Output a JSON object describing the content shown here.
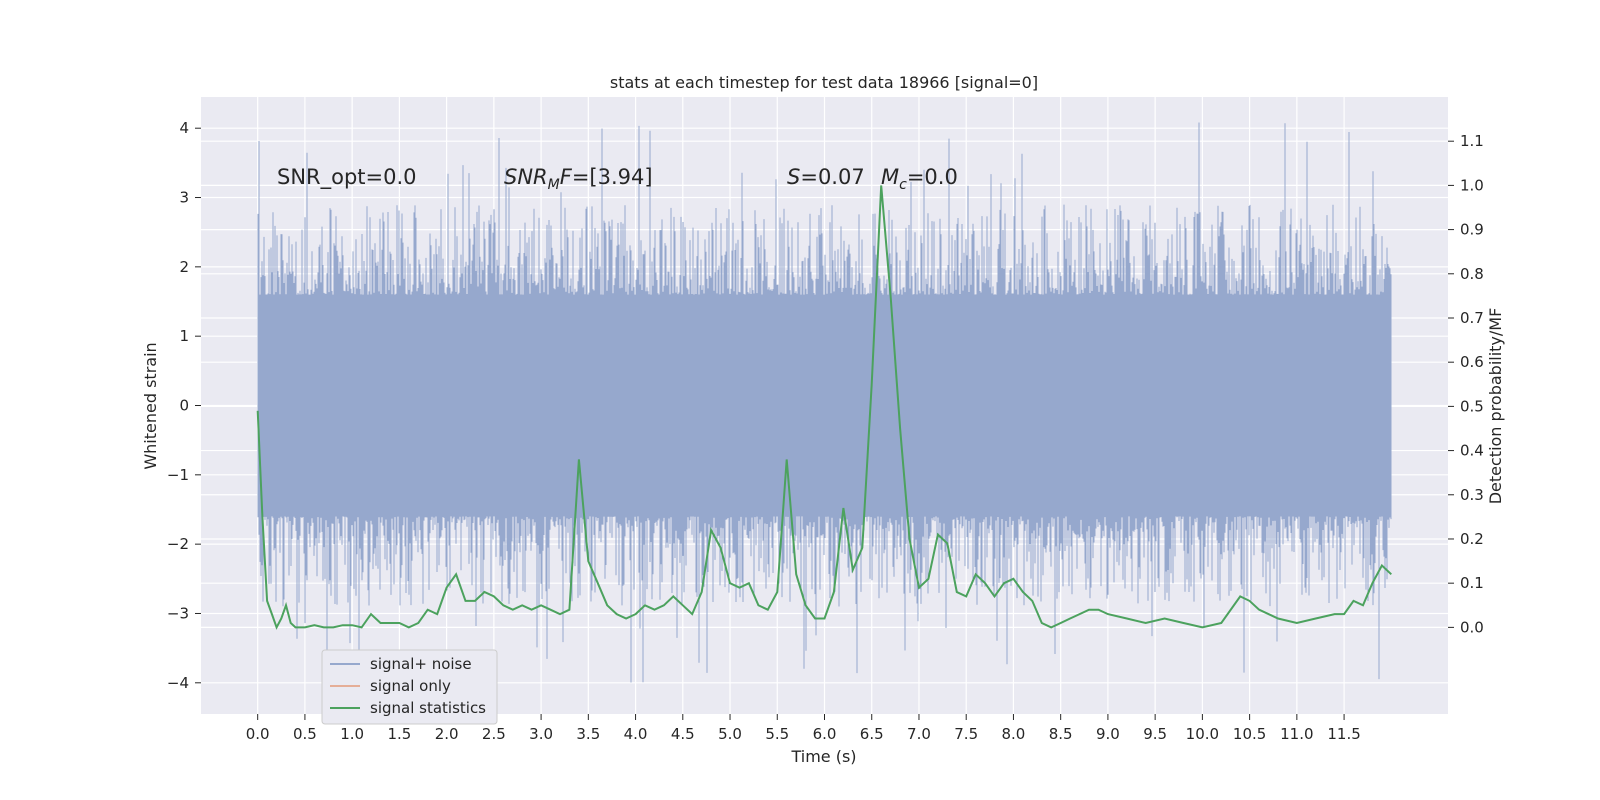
{
  "chart_data": {
    "type": "line",
    "title": "stats at each timestep for test data 18966 [signal=0]",
    "xlabel": "Time (s)",
    "ylabel": "Whitened strain",
    "y2label": "Detection probability/MF",
    "xlim": [
      -0.6,
      12.6
    ],
    "ylim": [
      -4.45,
      4.45
    ],
    "y2lim": [
      -0.196,
      1.2
    ],
    "grid": true,
    "legend_position": "lower-left",
    "x_ticks": [
      "0.0",
      "0.5",
      "1.0",
      "1.5",
      "2.0",
      "2.5",
      "3.0",
      "3.5",
      "4.0",
      "4.5",
      "5.0",
      "5.5",
      "6.0",
      "6.5",
      "7.0",
      "7.5",
      "8.0",
      "8.5",
      "9.0",
      "9.5",
      "10.0",
      "10.5",
      "11.0",
      "11.5"
    ],
    "y_ticks": [
      "4",
      "3",
      "2",
      "1",
      "0",
      "−1",
      "−2",
      "−3",
      "−4"
    ],
    "y2_ticks": [
      "1.1",
      "1.0",
      "0.9",
      "0.8",
      "0.7",
      "0.6",
      "0.5",
      "0.4",
      "0.3",
      "0.2",
      "0.1",
      "0.0"
    ],
    "annotations": {
      "snr_opt": "SNR_opt=0.0",
      "snr_mf_sym": "SNR",
      "snr_mf_sub": "M",
      "snr_mf_f": "F",
      "snr_mf_val": "=[3.94]",
      "s_sym": "S",
      "s_val": "=0.07",
      "mc_sym": "M",
      "mc_sub": "c",
      "mc_val": "=0.0"
    },
    "series": [
      {
        "name": "signal+ noise",
        "color": "#96a8cd",
        "axis": "left",
        "x_range": [
          0.0,
          12.0
        ],
        "typical_band": [
          -1.3,
          1.3
        ],
        "peak_range": [
          -4.0,
          4.1
        ]
      },
      {
        "name": "signal only",
        "color": "#e5ae97",
        "axis": "left",
        "values": []
      },
      {
        "name": "signal statistics",
        "color": "#4ca25e",
        "axis": "right",
        "x": [
          0.0,
          0.05,
          0.1,
          0.15,
          0.2,
          0.25,
          0.3,
          0.35,
          0.4,
          0.45,
          0.5,
          0.6,
          0.7,
          0.8,
          0.9,
          1.0,
          1.1,
          1.2,
          1.3,
          1.4,
          1.5,
          1.6,
          1.7,
          1.8,
          1.9,
          2.0,
          2.1,
          2.2,
          2.3,
          2.4,
          2.5,
          2.6,
          2.7,
          2.8,
          2.9,
          3.0,
          3.1,
          3.2,
          3.3,
          3.4,
          3.5,
          3.6,
          3.7,
          3.8,
          3.9,
          4.0,
          4.1,
          4.2,
          4.3,
          4.4,
          4.5,
          4.6,
          4.7,
          4.8,
          4.9,
          5.0,
          5.1,
          5.2,
          5.3,
          5.4,
          5.5,
          5.6,
          5.7,
          5.8,
          5.9,
          6.0,
          6.1,
          6.2,
          6.3,
          6.4,
          6.5,
          6.6,
          6.7,
          6.8,
          6.9,
          7.0,
          7.1,
          7.2,
          7.3,
          7.4,
          7.5,
          7.6,
          7.7,
          7.8,
          7.9,
          8.0,
          8.1,
          8.2,
          8.3,
          8.4,
          8.5,
          8.6,
          8.7,
          8.8,
          8.9,
          9.0,
          9.2,
          9.4,
          9.6,
          9.8,
          10.0,
          10.2,
          10.4,
          10.5,
          10.6,
          10.8,
          11.0,
          11.2,
          11.4,
          11.5,
          11.6,
          11.7,
          11.8,
          11.9,
          12.0
        ],
        "values": [
          0.49,
          0.25,
          0.06,
          0.03,
          0.0,
          0.02,
          0.05,
          0.01,
          0.0,
          0.0,
          0.0,
          0.005,
          0.0,
          0.0,
          0.005,
          0.005,
          0.0,
          0.03,
          0.01,
          0.01,
          0.01,
          0.0,
          0.01,
          0.04,
          0.03,
          0.09,
          0.12,
          0.06,
          0.06,
          0.08,
          0.07,
          0.05,
          0.04,
          0.05,
          0.04,
          0.05,
          0.04,
          0.03,
          0.04,
          0.38,
          0.15,
          0.1,
          0.05,
          0.03,
          0.02,
          0.03,
          0.05,
          0.04,
          0.05,
          0.07,
          0.05,
          0.03,
          0.08,
          0.22,
          0.18,
          0.1,
          0.09,
          0.1,
          0.05,
          0.04,
          0.08,
          0.38,
          0.12,
          0.05,
          0.02,
          0.02,
          0.08,
          0.27,
          0.13,
          0.18,
          0.55,
          1.0,
          0.75,
          0.45,
          0.2,
          0.09,
          0.11,
          0.21,
          0.19,
          0.08,
          0.07,
          0.12,
          0.1,
          0.07,
          0.1,
          0.11,
          0.08,
          0.06,
          0.01,
          0.0,
          0.01,
          0.02,
          0.03,
          0.04,
          0.04,
          0.03,
          0.02,
          0.01,
          0.02,
          0.01,
          0.0,
          0.01,
          0.07,
          0.06,
          0.04,
          0.02,
          0.01,
          0.02,
          0.03,
          0.03,
          0.06,
          0.05,
          0.1,
          0.14,
          0.12
        ]
      }
    ]
  }
}
